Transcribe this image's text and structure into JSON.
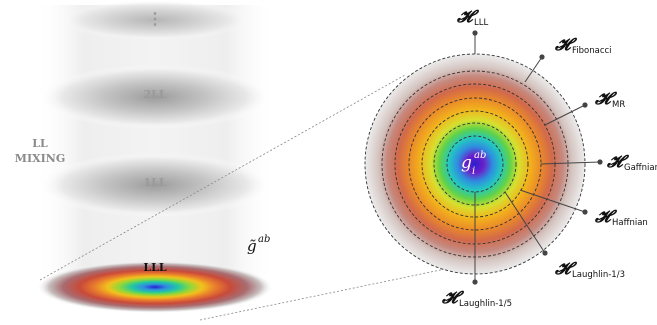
{
  "left": {
    "mixing_line1": "LL",
    "mixing_line2": "MIXING",
    "levels": [
      "2LL",
      "1LL",
      "LLL"
    ],
    "ellipsis": "⋮"
  },
  "metric_left": {
    "base": "g̃",
    "sup": "ab"
  },
  "metric_center": {
    "base": "g",
    "sub": "i",
    "sup": "ab"
  },
  "hamiltonians": [
    {
      "symbol": "𝓗",
      "subscript": "LLL"
    },
    {
      "symbol": "𝓗",
      "subscript": "Fibonacci"
    },
    {
      "symbol": "𝓗",
      "subscript": "MR"
    },
    {
      "symbol": "𝓗",
      "subscript": "Gaffnian"
    },
    {
      "symbol": "𝓗",
      "subscript": "Haffnian"
    },
    {
      "symbol": "𝓗",
      "subscript": "Laughlin-1/3"
    },
    {
      "symbol": "𝓗",
      "subscript": "Laughlin-1/5"
    }
  ],
  "colors": {
    "dashed": "#333333",
    "pointer": "#444444",
    "rainbow_core": "#2a1fd0"
  }
}
